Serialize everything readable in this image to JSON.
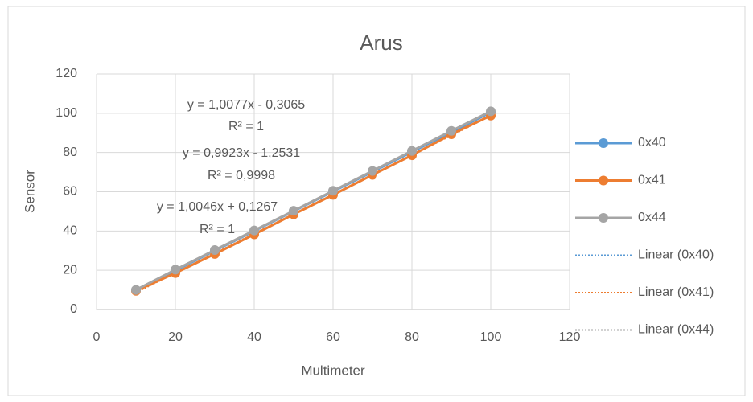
{
  "chart_data": {
    "type": "scatter",
    "title": "Arus",
    "x_label": "Multimeter",
    "y_label": "Sensor",
    "x": [
      10,
      20,
      30,
      40,
      50,
      60,
      70,
      80,
      90,
      100
    ],
    "series": [
      {
        "name": "0x40",
        "color": "#5b9bd5",
        "values": [
          9.8,
          19.9,
          30,
          40,
          50.1,
          60.2,
          70.2,
          80.3,
          90.4,
          100.5
        ]
      },
      {
        "name": "0x41",
        "color": "#ed7d31",
        "values": [
          9.5,
          18.6,
          28.3,
          38.3,
          48.5,
          58.4,
          68.6,
          78.6,
          89.3,
          98.8
        ]
      },
      {
        "name": "0x44",
        "color": "#a5a5a5",
        "values": [
          10,
          20.3,
          30.3,
          40.3,
          50.3,
          60.5,
          70.6,
          80.8,
          91,
          101
        ]
      }
    ],
    "trendlines": [
      {
        "name": "Linear (0x40)",
        "color": "#5b9bd5"
      },
      {
        "name": "Linear (0x41)",
        "color": "#ed7d31"
      },
      {
        "name": "Linear (0x44)",
        "color": "#a5a5a5"
      }
    ],
    "annotations": [
      "y = 1,0077x - 0,3065",
      "R² = 1",
      "y = 0,9923x - 1,2531",
      "R² = 0,9998",
      "y = 1,0046x + 0,1267",
      "R² = 1"
    ],
    "xlim": [
      0,
      120
    ],
    "xticks": [
      0,
      20,
      40,
      60,
      80,
      100,
      120
    ],
    "ylim": [
      0,
      120
    ],
    "yticks": [
      0,
      20,
      40,
      60,
      80,
      100,
      120
    ],
    "grid": true,
    "legend": "right"
  }
}
